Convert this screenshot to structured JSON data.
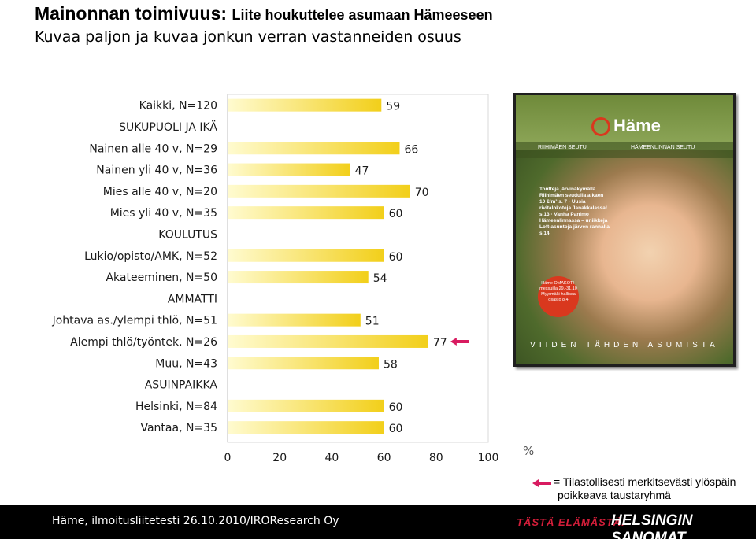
{
  "header": {
    "title": "Mainonnan toimivuus:",
    "title_suffix": "Liite houkuttelee asumaan Hämeeseen",
    "subtitle": "Kuvaa paljon ja kuvaa jonkun verran vastanneiden osuus"
  },
  "chart_data": {
    "type": "bar",
    "orientation": "horizontal",
    "xlim": [
      0,
      100
    ],
    "xticks": [
      "0",
      "20",
      "40",
      "60",
      "80",
      "100"
    ],
    "x_unit_label": "%",
    "grid": false,
    "rows": [
      {
        "label": "Kaikki, N=120",
        "value": 59,
        "value_label": "59",
        "kind": "bar"
      },
      {
        "label": "SUKUPUOLI JA IKÄ",
        "kind": "section"
      },
      {
        "label": "Nainen alle 40 v, N=29",
        "value": 66,
        "value_label": "66",
        "kind": "bar"
      },
      {
        "label": "Nainen yli 40 v, N=36",
        "value": 47,
        "value_label": "47",
        "kind": "bar"
      },
      {
        "label": "Mies alle 40 v, N=20",
        "value": 70,
        "value_label": "70",
        "kind": "bar"
      },
      {
        "label": "Mies yli 40 v, N=35",
        "value": 60,
        "value_label": "60",
        "kind": "bar"
      },
      {
        "label": "KOULUTUS",
        "kind": "section"
      },
      {
        "label": "Lukio/opisto/AMK, N=52",
        "value": 60,
        "value_label": "60",
        "kind": "bar"
      },
      {
        "label": "Akateeminen, N=50",
        "value": 54,
        "value_label": "54",
        "kind": "bar"
      },
      {
        "label": "AMMATTI",
        "kind": "section"
      },
      {
        "label": "Johtava as./ylempi thlö, N=51",
        "value": 51,
        "value_label": "51",
        "kind": "bar"
      },
      {
        "label": "Alempi thlö/työntek. N=26",
        "value": 77,
        "value_label": "77",
        "kind": "bar",
        "highlight": true
      },
      {
        "label": "Muu, N=43",
        "value": 58,
        "value_label": "58",
        "kind": "bar"
      },
      {
        "label": "ASUINPAIKKA",
        "kind": "section"
      },
      {
        "label": "Helsinki, N=84",
        "value": 60,
        "value_label": "60",
        "kind": "bar"
      },
      {
        "label": "Vantaa, N=35",
        "value": 60,
        "value_label": "60",
        "kind": "bar"
      }
    ],
    "colors": {
      "bar_light": "#fffbd0",
      "bar_dark": "#f2cf1a",
      "highlight_arrow": "#d81b60"
    }
  },
  "ad_image": {
    "logo": "Häme",
    "band_left": "RIIHIMÄEN SEUTU",
    "band_right": "HÄMEENLINNAN SEUTU",
    "text": "Tontteja järvinäkymällä Riihimäen seudulla alkaen 10 €/m² s. 7 · Uusia rivitalokoteja Janakkalassa! s.13 · Vanha Panimo Hämeenlinnassa – uniikkeja Loft-asuntoja järven rannalla s.14",
    "badge": "Häme OMAKOTI- messuilla 29.-31.10 Myyrmäki-hallissa osasto 8.4",
    "footer": "VIIDEN TÄHDEN ASUMISTA"
  },
  "legend": {
    "line1": "= Tilastollisesti merkitsevästi ylöspäin",
    "line2": "poikkeava taustaryhmä"
  },
  "footer": {
    "source": "Häme, ilmoitusliitetesti 26.10.2010/IROResearch Oy",
    "slogan": "TÄSTÄ ELÄMÄSTÄ.",
    "brand": "HELSINGIN SANOMAT"
  }
}
